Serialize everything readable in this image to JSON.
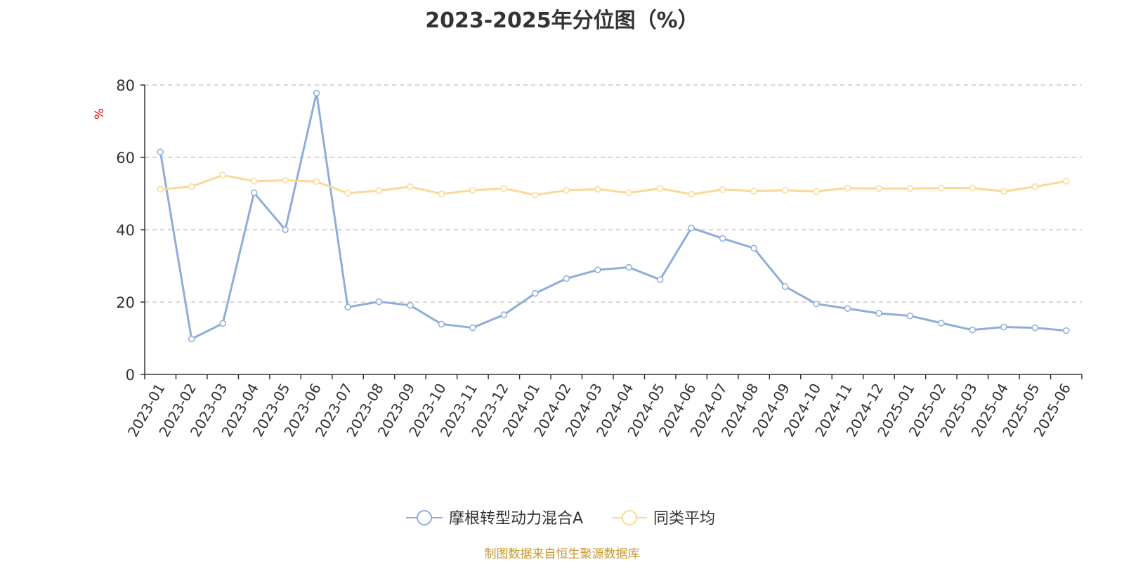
{
  "colors": {
    "series_1": "#8eadd9",
    "series_2": "#fad996",
    "unit": "#ff0000",
    "source": "#c8962e",
    "axis": "#333333",
    "grid": "#cccccc"
  },
  "source_text": "制图数据来自恒生聚源数据库",
  "chart_data": {
    "type": "line",
    "title": "2023-2025年分位图（%）",
    "ylabel": "%",
    "xlabel": "",
    "ylim": [
      0,
      80
    ],
    "yticks": [
      "0",
      "20",
      "40",
      "60",
      "80"
    ],
    "grid": "horizontal dashed",
    "legend_position": "bottom",
    "categories": [
      "2023-01",
      "2023-02",
      "2023-03",
      "2023-04",
      "2023-05",
      "2023-06",
      "2023-07",
      "2023-08",
      "2023-09",
      "2023-10",
      "2023-11",
      "2023-12",
      "2024-01",
      "2024-02",
      "2024-03",
      "2024-04",
      "2024-05",
      "2024-06",
      "2024-07",
      "2024-08",
      "2024-09",
      "2024-10",
      "2024-11",
      "2024-12",
      "2025-01",
      "2025-02",
      "2025-03",
      "2025-04",
      "2025-05",
      "2025-06"
    ],
    "series": [
      {
        "name": "摩根转型动力混合A",
        "color": "#8eadd9",
        "values": [
          61.5,
          9.8,
          14.1,
          50.2,
          40.0,
          77.8,
          18.6,
          20.1,
          19.1,
          13.9,
          12.9,
          16.5,
          22.4,
          26.5,
          28.9,
          29.6,
          26.2,
          40.5,
          37.6,
          34.9,
          24.3,
          19.5,
          18.2,
          16.9,
          16.2,
          14.2,
          12.3,
          13.1,
          12.9,
          12.1
        ]
      },
      {
        "name": "同类平均",
        "color": "#fad996",
        "values": [
          51.2,
          51.9,
          55.1,
          53.4,
          53.7,
          53.3,
          50.1,
          50.8,
          51.9,
          49.9,
          50.9,
          51.4,
          49.6,
          50.9,
          51.2,
          50.2,
          51.4,
          49.8,
          51.1,
          50.7,
          50.9,
          50.6,
          51.5,
          51.4,
          51.4,
          51.5,
          51.5,
          50.6,
          51.9,
          53.4
        ]
      }
    ]
  }
}
